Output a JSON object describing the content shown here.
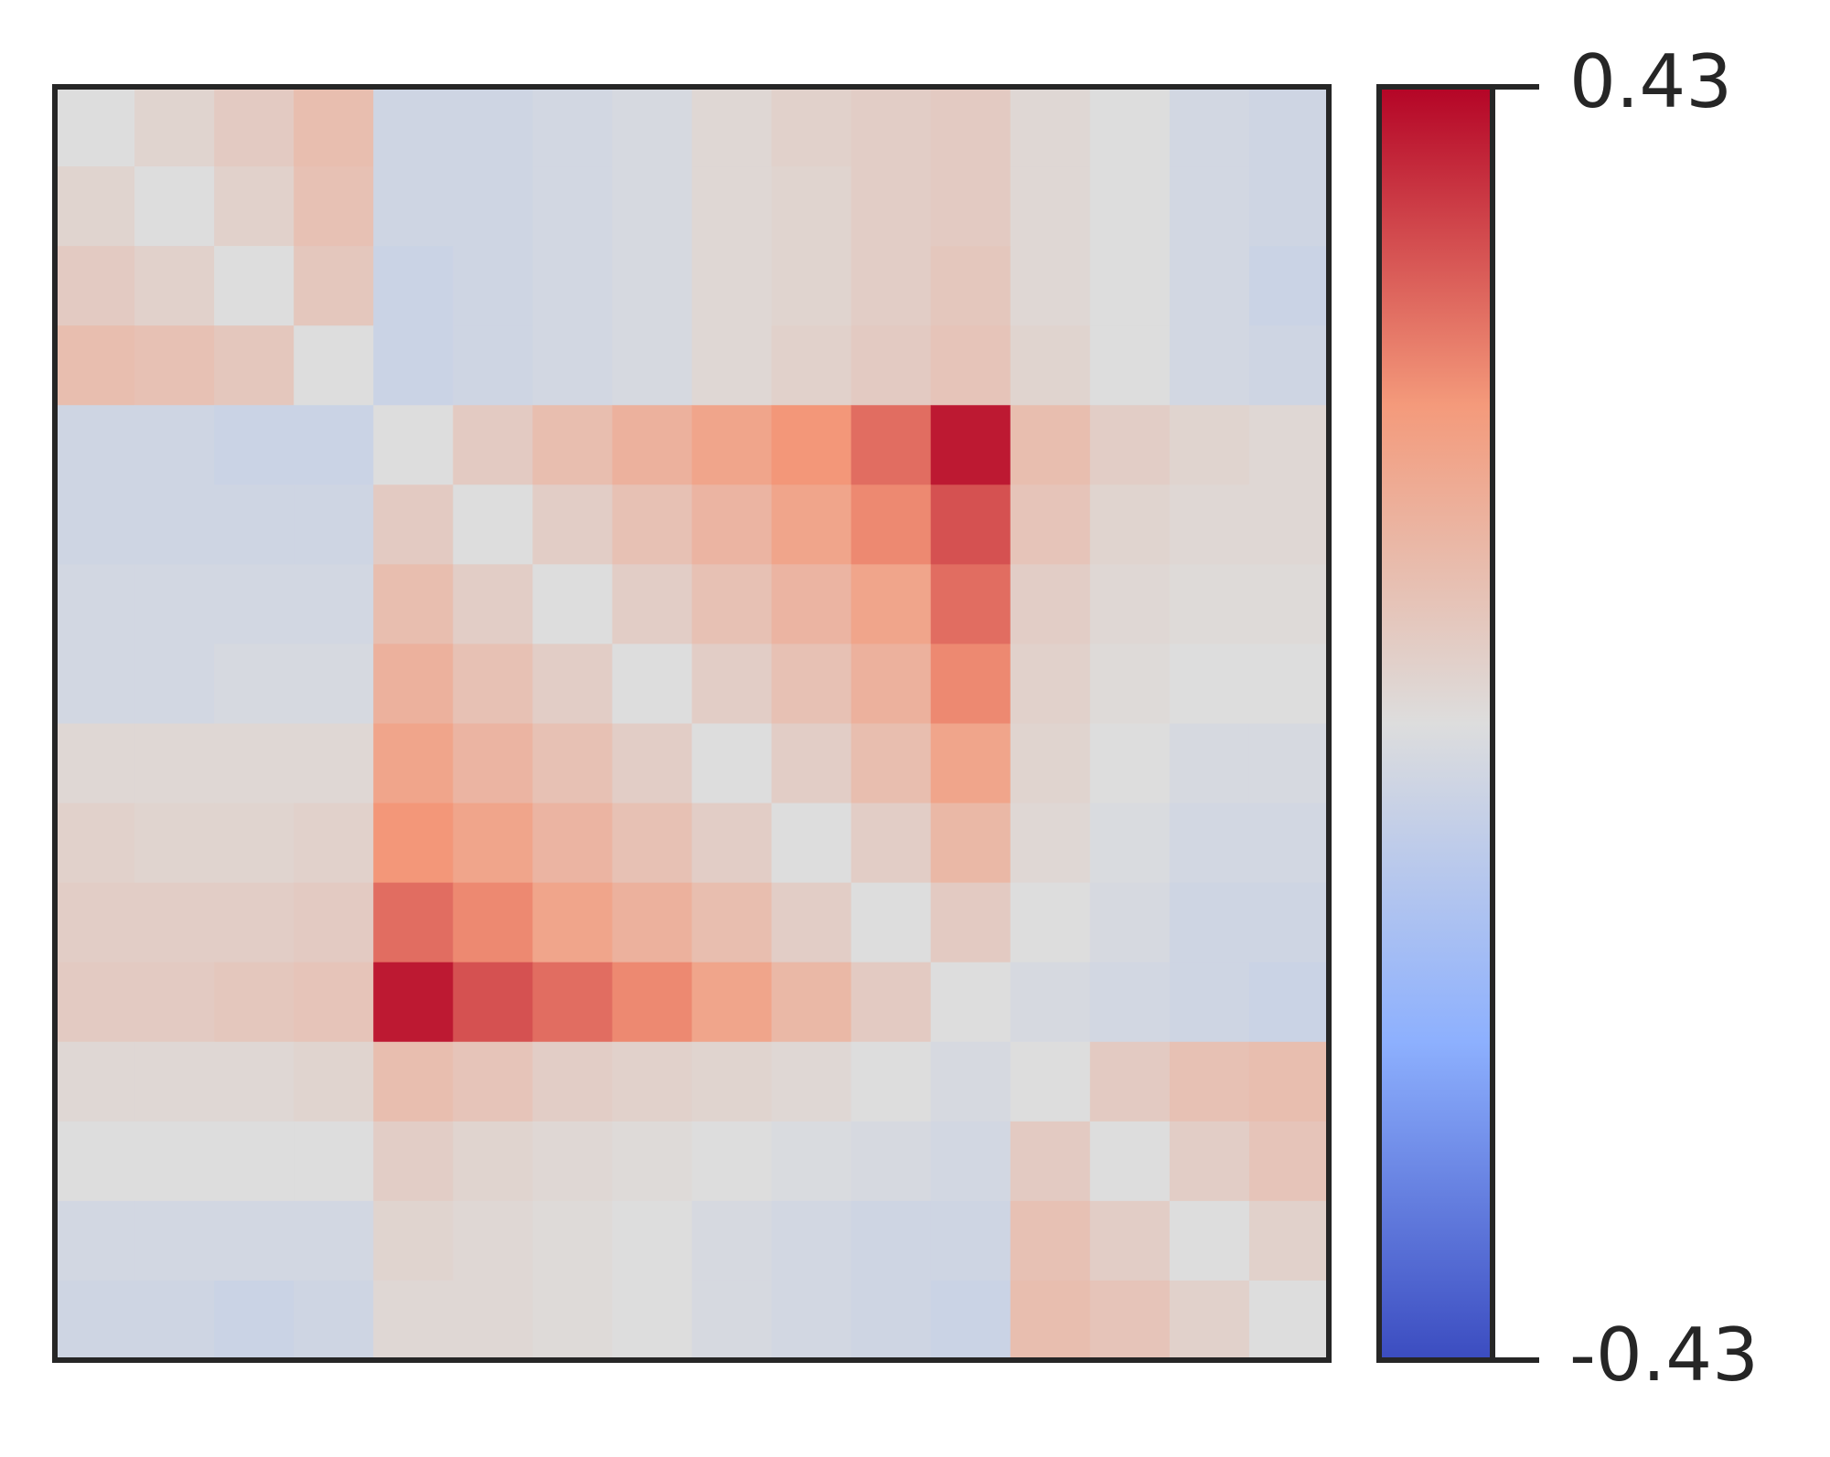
{
  "chart_data": {
    "type": "heatmap",
    "colormap": [
      "#3b4cc0",
      "#8db0fe",
      "#dddddd",
      "#f49a7b",
      "#b40426"
    ],
    "clim": [
      -0.43,
      0.43
    ],
    "cticks": [
      0.43,
      -0.43
    ],
    "values": [
      [
        0.0,
        0.03,
        0.06,
        0.1,
        -0.04,
        -0.04,
        -0.03,
        -0.02,
        0.02,
        0.04,
        0.05,
        0.06,
        0.02,
        0.0,
        -0.03,
        -0.04
      ],
      [
        0.03,
        0.0,
        0.04,
        0.09,
        -0.04,
        -0.04,
        -0.03,
        -0.02,
        0.02,
        0.03,
        0.05,
        0.06,
        0.02,
        0.0,
        -0.03,
        -0.04
      ],
      [
        0.06,
        0.04,
        0.0,
        0.07,
        -0.05,
        -0.04,
        -0.03,
        -0.02,
        0.02,
        0.03,
        0.05,
        0.07,
        0.02,
        0.0,
        -0.03,
        -0.05
      ],
      [
        0.1,
        0.09,
        0.07,
        0.0,
        -0.05,
        -0.04,
        -0.03,
        -0.02,
        0.02,
        0.04,
        0.06,
        0.08,
        0.03,
        0.0,
        -0.03,
        -0.04
      ],
      [
        -0.04,
        -0.04,
        -0.05,
        -0.05,
        0.0,
        0.06,
        0.1,
        0.14,
        0.18,
        0.22,
        0.28,
        0.4,
        0.1,
        0.05,
        0.03,
        0.02
      ],
      [
        -0.04,
        -0.04,
        -0.04,
        -0.04,
        0.06,
        0.0,
        0.05,
        0.09,
        0.13,
        0.18,
        0.24,
        0.32,
        0.08,
        0.03,
        0.02,
        0.02
      ],
      [
        -0.03,
        -0.03,
        -0.03,
        -0.03,
        0.1,
        0.05,
        0.0,
        0.05,
        0.09,
        0.13,
        0.18,
        0.28,
        0.05,
        0.02,
        0.01,
        0.01
      ],
      [
        -0.03,
        -0.03,
        -0.02,
        -0.02,
        0.14,
        0.09,
        0.05,
        0.0,
        0.05,
        0.09,
        0.14,
        0.24,
        0.04,
        0.01,
        0.0,
        0.0
      ],
      [
        0.02,
        0.02,
        0.02,
        0.02,
        0.18,
        0.13,
        0.09,
        0.05,
        0.0,
        0.05,
        0.1,
        0.18,
        0.03,
        0.0,
        -0.02,
        -0.02
      ],
      [
        0.04,
        0.03,
        0.03,
        0.04,
        0.22,
        0.18,
        0.13,
        0.09,
        0.05,
        0.0,
        0.05,
        0.12,
        0.02,
        -0.01,
        -0.03,
        -0.03
      ],
      [
        0.05,
        0.05,
        0.05,
        0.06,
        0.28,
        0.24,
        0.18,
        0.14,
        0.1,
        0.05,
        0.0,
        0.06,
        0.0,
        -0.02,
        -0.04,
        -0.04
      ],
      [
        0.06,
        0.06,
        0.07,
        0.08,
        0.4,
        0.32,
        0.28,
        0.24,
        0.18,
        0.12,
        0.06,
        0.0,
        -0.02,
        -0.03,
        -0.04,
        -0.05
      ],
      [
        0.02,
        0.02,
        0.02,
        0.03,
        0.1,
        0.08,
        0.05,
        0.04,
        0.03,
        0.02,
        0.0,
        -0.02,
        0.0,
        0.06,
        0.09,
        0.1
      ],
      [
        0.0,
        0.0,
        0.0,
        0.0,
        0.05,
        0.03,
        0.02,
        0.01,
        0.0,
        -0.01,
        -0.02,
        -0.03,
        0.06,
        0.0,
        0.05,
        0.08
      ],
      [
        -0.03,
        -0.03,
        -0.03,
        -0.03,
        0.03,
        0.02,
        0.01,
        0.0,
        -0.02,
        -0.03,
        -0.04,
        -0.04,
        0.09,
        0.05,
        0.0,
        0.04
      ],
      [
        -0.04,
        -0.04,
        -0.05,
        -0.04,
        0.02,
        0.02,
        0.01,
        0.0,
        -0.02,
        -0.03,
        -0.04,
        -0.05,
        0.1,
        0.08,
        0.04,
        0.0
      ]
    ]
  }
}
